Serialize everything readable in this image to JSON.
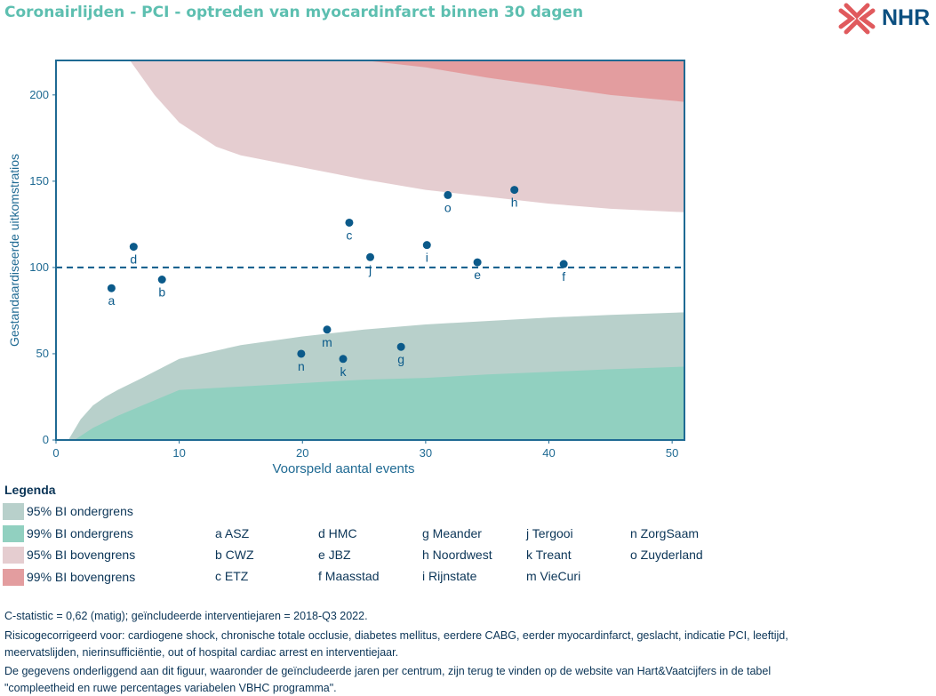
{
  "title": "Coronairlijden - PCI - optreden van myocardinfarct binnen 30 dagen",
  "logo": {
    "text": "NHR",
    "icon": "nhr-cross-logo-icon"
  },
  "colors": {
    "title": "#5dbfb0",
    "text": "#0b3557",
    "axis": "#1f6a93",
    "point": "#0b5a8a",
    "frame": "#1f6a93",
    "ci95_lower": "#b8d0cb",
    "ci99_lower": "#91d0c0",
    "ci95_upper": "#e5cdd0",
    "ci99_upper": "#e39d9f"
  },
  "chart_data": {
    "type": "scatter",
    "xlabel": "Voorspeld aantal events",
    "ylabel": "Gestandaardiseerde uitkomstratios",
    "xlim": [
      0,
      51
    ],
    "ylim": [
      0,
      220
    ],
    "xticks": [
      0,
      10,
      20,
      30,
      40,
      50
    ],
    "yticks": [
      0,
      50,
      100,
      150,
      200
    ],
    "reference_line": 100,
    "points": [
      {
        "label": "a",
        "x": 4.5,
        "y": 88
      },
      {
        "label": "b",
        "x": 8.6,
        "y": 93
      },
      {
        "label": "c",
        "x": 23.8,
        "y": 126
      },
      {
        "label": "d",
        "x": 6.3,
        "y": 112
      },
      {
        "label": "e",
        "x": 34.2,
        "y": 103
      },
      {
        "label": "f",
        "x": 41.2,
        "y": 102
      },
      {
        "label": "g",
        "x": 28,
        "y": 54
      },
      {
        "label": "h",
        "x": 37.2,
        "y": 145
      },
      {
        "label": "i",
        "x": 30.1,
        "y": 113
      },
      {
        "label": "j",
        "x": 25.5,
        "y": 106
      },
      {
        "label": "k",
        "x": 23.3,
        "y": 47
      },
      {
        "label": "m",
        "x": 22,
        "y": 64
      },
      {
        "label": "n",
        "x": 19.9,
        "y": 50
      },
      {
        "label": "o",
        "x": 31.8,
        "y": 142
      }
    ],
    "bands": {
      "lower95": [
        [
          1,
          0
        ],
        [
          2,
          12
        ],
        [
          3,
          20
        ],
        [
          4,
          25
        ],
        [
          5,
          29
        ],
        [
          7,
          36
        ],
        [
          10,
          47
        ],
        [
          15,
          55
        ],
        [
          20,
          60
        ],
        [
          25,
          64
        ],
        [
          30,
          67
        ],
        [
          35,
          69
        ],
        [
          40,
          71
        ],
        [
          45,
          72.5
        ],
        [
          51,
          74
        ]
      ],
      "lower99": [
        [
          1.5,
          0
        ],
        [
          3,
          7
        ],
        [
          5,
          14
        ],
        [
          7,
          20
        ],
        [
          10,
          29
        ],
        [
          15,
          31
        ],
        [
          20,
          33
        ],
        [
          25,
          35
        ],
        [
          30,
          36
        ],
        [
          35,
          38
        ],
        [
          40,
          39.5
        ],
        [
          45,
          41
        ],
        [
          51,
          42.5
        ]
      ],
      "upper95": [
        [
          6,
          220
        ],
        [
          8,
          200
        ],
        [
          10,
          184
        ],
        [
          13,
          170
        ],
        [
          15,
          165
        ],
        [
          20,
          158
        ],
        [
          25,
          151
        ],
        [
          30,
          145
        ],
        [
          35,
          141
        ],
        [
          40,
          137
        ],
        [
          45,
          134
        ],
        [
          51,
          132
        ]
      ],
      "upper99": [
        [
          25,
          220
        ],
        [
          30,
          216
        ],
        [
          35,
          210
        ],
        [
          40,
          205
        ],
        [
          45,
          200
        ],
        [
          51,
          196
        ]
      ]
    }
  },
  "legend": {
    "title": "Legenda",
    "swatches": [
      {
        "label": "95% BI ondergrens",
        "color": "#b8d0cb"
      },
      {
        "label": "99% BI ondergrens",
        "color": "#91d0c0"
      },
      {
        "label": "95% BI bovengrens",
        "color": "#e5cdd0"
      },
      {
        "label": "99% BI bovengrens",
        "color": "#e39d9f"
      }
    ],
    "centers": [
      [
        "a ASZ",
        "d HMC",
        "g Meander",
        "j Tergooi",
        "n ZorgSaam"
      ],
      [
        "b CWZ",
        "e JBZ",
        "h Noordwest",
        "k Treant",
        "o Zuyderland"
      ],
      [
        "c ETZ",
        "f Maasstad",
        "i Rijnstate",
        "m VieCuri",
        ""
      ]
    ]
  },
  "footnotes": [
    "C-statistic =  0,62 (matig); geïncludeerde interventiejaren = 2018-Q3 2022.",
    "Risicogecorrigeerd voor: cardiogene shock, chronische totale occlusie, diabetes mellitus, eerdere CABG, eerder myocardinfarct, geslacht, indicatie PCI, leeftijd,",
    "meervatslijden, nierinsufficiëntie, out of hospital cardiac arrest en interventiejaar.",
    "De gegevens onderliggend aan dit figuur, waaronder de geïncludeerde jaren per centrum, zijn terug te vinden op de website van Hart&Vaatcijfers in de tabel",
    "\"compleetheid en ruwe percentages variabelen VBHC programma\"."
  ]
}
